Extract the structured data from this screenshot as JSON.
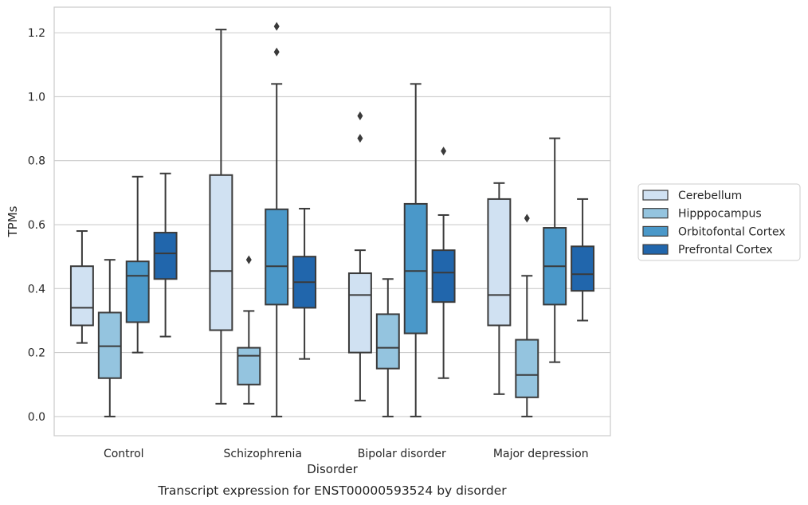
{
  "chart_data": {
    "type": "box",
    "caption": "Transcript expression for ENST00000593524 by disorder",
    "xlabel": "Disorder",
    "ylabel": "TPMs",
    "ylim": [
      -0.06,
      1.28
    ],
    "yticks": [
      0.0,
      0.2,
      0.4,
      0.6,
      0.8,
      1.0,
      1.2
    ],
    "ytick_labels": [
      "0.0",
      "0.2",
      "0.4",
      "0.6",
      "0.8",
      "1.0",
      "1.2"
    ],
    "grid": true,
    "legend_position": "right",
    "categories": [
      "Control",
      "Schizophrenia",
      "Bipolar disorder",
      "Major depression"
    ],
    "series": [
      {
        "name": "Cerebellum",
        "color": "#d0e1f2",
        "boxes": [
          {
            "whisker_low": 0.23,
            "q1": 0.285,
            "median": 0.34,
            "q3": 0.47,
            "whisker_high": 0.58,
            "outliers": []
          },
          {
            "whisker_low": 0.04,
            "q1": 0.27,
            "median": 0.455,
            "q3": 0.755,
            "whisker_high": 1.21,
            "outliers": []
          },
          {
            "whisker_low": 0.05,
            "q1": 0.2,
            "median": 0.38,
            "q3": 0.448,
            "whisker_high": 0.52,
            "outliers": [
              0.87,
              0.94
            ]
          },
          {
            "whisker_low": 0.07,
            "q1": 0.285,
            "median": 0.38,
            "q3": 0.68,
            "whisker_high": 0.73,
            "outliers": []
          }
        ]
      },
      {
        "name": "Hipppocampus",
        "color": "#94c4df",
        "boxes": [
          {
            "whisker_low": 0.0,
            "q1": 0.12,
            "median": 0.22,
            "q3": 0.325,
            "whisker_high": 0.49,
            "outliers": []
          },
          {
            "whisker_low": 0.04,
            "q1": 0.1,
            "median": 0.19,
            "q3": 0.215,
            "whisker_high": 0.33,
            "outliers": [
              0.49
            ]
          },
          {
            "whisker_low": 0.0,
            "q1": 0.15,
            "median": 0.215,
            "q3": 0.32,
            "whisker_high": 0.43,
            "outliers": []
          },
          {
            "whisker_low": 0.0,
            "q1": 0.06,
            "median": 0.13,
            "q3": 0.24,
            "whisker_high": 0.44,
            "outliers": [
              0.62
            ]
          }
        ]
      },
      {
        "name": "Orbitofontal Cortex",
        "color": "#4a98c9",
        "boxes": [
          {
            "whisker_low": 0.2,
            "q1": 0.295,
            "median": 0.44,
            "q3": 0.485,
            "whisker_high": 0.75,
            "outliers": []
          },
          {
            "whisker_low": 0.0,
            "q1": 0.35,
            "median": 0.47,
            "q3": 0.648,
            "whisker_high": 1.04,
            "outliers": [
              1.14,
              1.22
            ]
          },
          {
            "whisker_low": 0.0,
            "q1": 0.26,
            "median": 0.455,
            "q3": 0.665,
            "whisker_high": 1.04,
            "outliers": []
          },
          {
            "whisker_low": 0.17,
            "q1": 0.35,
            "median": 0.47,
            "q3": 0.59,
            "whisker_high": 0.87,
            "outliers": []
          }
        ]
      },
      {
        "name": "Prefrontal Cortex",
        "color": "#2166ac",
        "boxes": [
          {
            "whisker_low": 0.25,
            "q1": 0.43,
            "median": 0.51,
            "q3": 0.575,
            "whisker_high": 0.76,
            "outliers": []
          },
          {
            "whisker_low": 0.18,
            "q1": 0.34,
            "median": 0.42,
            "q3": 0.5,
            "whisker_high": 0.65,
            "outliers": []
          },
          {
            "whisker_low": 0.12,
            "q1": 0.358,
            "median": 0.45,
            "q3": 0.52,
            "whisker_high": 0.63,
            "outliers": [
              0.83
            ]
          },
          {
            "whisker_low": 0.3,
            "q1": 0.393,
            "median": 0.445,
            "q3": 0.532,
            "whisker_high": 0.68,
            "outliers": []
          }
        ]
      }
    ]
  }
}
